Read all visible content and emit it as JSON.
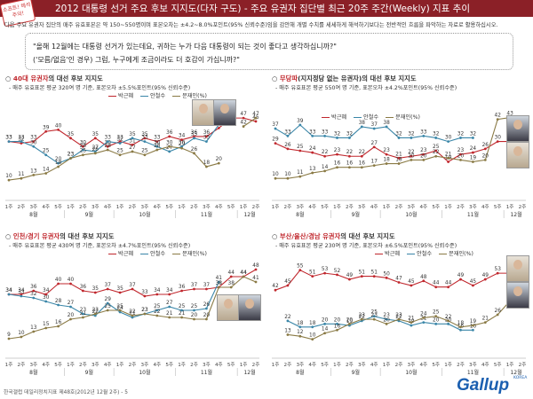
{
  "badge": {
    "text": "소프트! 해석주의!"
  },
  "header": {
    "title": "2012 대통령 선거 주요 후보 지지도(다자 구도) - 주요 유권자 집단별 최근 20주 주간(Weekly) 지표 추이"
  },
  "note": "다음 주요 유권자 집단의 매주 유효표본은 약 150~550명이며 표본오차는 ±4.2~8.0%포인트(95% 신뢰수준)임을 감안해 개별 수치를 세세하게 해석하기보다는 전반적인 흐름을 파악하는 자료로 활용하십시오.",
  "question": {
    "line1": "\"올해 12월에는 대통령 선거가 있는데요, 귀하는 누가 다음 대통령이 되는 것이 좋다고 생각하십니까?\"",
    "line2": "('모름/없음'인 경우) 그럼, 누구에게 조금이라도 더 호감이 가십니까?\""
  },
  "legend_labels": {
    "park": "박근혜",
    "ahn": "안철수",
    "moon": "문재인(%)"
  },
  "colors": {
    "park": "#c0272d",
    "ahn": "#3a86a8",
    "moon": "#8a7a45",
    "header": "#8b2027",
    "logo": "#1b5fb0"
  },
  "footer": "한국갤럽 데일리정치지표 제48호(2012년 12월 2주) - 5",
  "logo": {
    "name": "Gallup",
    "sub": "KOREA"
  },
  "chart_data": [
    {
      "type": "line",
      "title_red": "40대 유권자",
      "title_rest": "의 대선 후보 지지도",
      "subtitle": "- 매주 유효표본 평균 320여 명 기준, 표본오차 ±5.5%포인트(95% 신뢰수준)",
      "x": [
        "1주",
        "2주",
        "3주",
        "4주",
        "5주",
        "1주",
        "2주",
        "3주",
        "4주",
        "1주",
        "2주",
        "3주",
        "4주",
        "5주",
        "1주",
        "2주",
        "3주",
        "4주",
        "5주",
        "1주",
        "2주"
      ],
      "x_groups": [
        {
          "label": "8월",
          "from": 0
        },
        {
          "label": "9월",
          "from": 5
        },
        {
          "label": "10월",
          "from": 9
        },
        {
          "label": "11월",
          "from": 14
        },
        {
          "label": "12월",
          "from": 19
        }
      ],
      "ylim": [
        0,
        55
      ],
      "series": [
        {
          "name": "박근혜",
          "key": "park",
          "values": [
            33,
            32,
            33,
            39,
            40,
            35,
            30,
            35,
            30,
            33,
            31,
            35,
            33,
            36,
            34,
            36,
            36,
            41,
            47,
            47,
            45
          ]
        },
        {
          "name": "안철수",
          "key": "ahn",
          "values": [
            33,
            33,
            30,
            25,
            20,
            23,
            28,
            27,
            33,
            32,
            35,
            33,
            30,
            27,
            30,
            35,
            33,
            43,
            null,
            null,
            null
          ]
        },
        {
          "name": "문재인",
          "key": "moon",
          "values": [
            10,
            11,
            13,
            14,
            18,
            23,
            25,
            26,
            28,
            25,
            27,
            25,
            28,
            30,
            29,
            26,
            18,
            20,
            null,
            42,
            47
          ]
        }
      ]
    },
    {
      "type": "line",
      "title_red": "무당파",
      "title_rest": "(지지정당 없는 유권자)의 대선 후보 지지도",
      "subtitle": "- 매주 유효표본 평균 550여 명 기준, 표본오차 ±4.2%포인트(95% 신뢰수준)",
      "x": [
        "1주",
        "2주",
        "3주",
        "4주",
        "5주",
        "1주",
        "2주",
        "3주",
        "4주",
        "1주",
        "2주",
        "3주",
        "4주",
        "5주",
        "1주",
        "2주",
        "3주",
        "4주",
        "5주",
        "1주",
        "2주"
      ],
      "x_groups": [
        {
          "label": "8월",
          "from": 0
        },
        {
          "label": "9월",
          "from": 5
        },
        {
          "label": "10월",
          "from": 9
        },
        {
          "label": "11월",
          "from": 14
        },
        {
          "label": "12월",
          "from": 19
        }
      ],
      "ylim": [
        0,
        50
      ],
      "series": [
        {
          "name": "안철수",
          "key": "ahn",
          "values": [
            37,
            33,
            39,
            33,
            33,
            32,
            32,
            38,
            37,
            38,
            32,
            32,
            33,
            32,
            30,
            32,
            32,
            null,
            null,
            null,
            null
          ]
        },
        {
          "name": "박근혜",
          "key": "park",
          "values": [
            29,
            26,
            25,
            24,
            22,
            23,
            22,
            22,
            27,
            23,
            21,
            22,
            23,
            25,
            19,
            23,
            24,
            26,
            30,
            30,
            30
          ]
        },
        {
          "name": "문재인",
          "key": "moon",
          "values": [
            10,
            10,
            11,
            13,
            14,
            16,
            16,
            16,
            17,
            18,
            18,
            20,
            20,
            22,
            21,
            20,
            19,
            20,
            42,
            43,
            40
          ]
        }
      ]
    },
    {
      "type": "line",
      "title_red": "인천/경기 유권자",
      "title_rest": "의 대선 후보 지지도",
      "subtitle": "- 매주 유효표본 평균 430여 명 기준, 표본오차 ±4.7%포인트(95% 신뢰수준)",
      "x": [
        "1주",
        "2주",
        "3주",
        "4주",
        "5주",
        "1주",
        "2주",
        "3주",
        "4주",
        "1주",
        "2주",
        "3주",
        "4주",
        "5주",
        "1주",
        "2주",
        "3주",
        "4주",
        "5주",
        "1주",
        "2주"
      ],
      "x_groups": [
        {
          "label": "8월",
          "from": 0
        },
        {
          "label": "9월",
          "from": 5
        },
        {
          "label": "10월",
          "from": 9
        },
        {
          "label": "11월",
          "from": 14
        },
        {
          "label": "12월",
          "from": 19
        }
      ],
      "ylim": [
        0,
        52
      ],
      "series": [
        {
          "name": "박근혜",
          "key": "park",
          "values": [
            34,
            34,
            36,
            34,
            40,
            40,
            36,
            35,
            37,
            35,
            37,
            33,
            34,
            34,
            36,
            37,
            37,
            38,
            44,
            44,
            48
          ]
        },
        {
          "name": "안철수",
          "key": "ahn",
          "values": [
            34,
            33,
            32,
            30,
            28,
            27,
            23,
            22,
            29,
            24,
            21,
            23,
            25,
            27,
            25,
            25,
            26,
            41,
            null,
            null,
            null
          ]
        },
        {
          "name": "문재인",
          "key": "moon",
          "values": [
            9,
            10,
            13,
            15,
            16,
            20,
            21,
            23,
            25,
            25,
            22,
            23,
            22,
            21,
            21,
            20,
            20,
            38,
            38,
            44,
            41
          ]
        }
      ]
    },
    {
      "type": "line",
      "title_red": "부산/울산/경남 유권자",
      "title_rest": "의 대선 후보 지지도",
      "subtitle": "- 매주 유효표본 평균 230여 명 기준, 표본오차 ±6.5%포인트(95% 신뢰수준)",
      "x": [
        "1주",
        "2주",
        "3주",
        "4주",
        "5주",
        "1주",
        "2주",
        "3주",
        "4주",
        "1주",
        "2주",
        "3주",
        "4주",
        "5주",
        "1주",
        "2주",
        "3주",
        "4주",
        "5주",
        "1주",
        "2주"
      ],
      "x_groups": [
        {
          "label": "8월",
          "from": 0
        },
        {
          "label": "9월",
          "from": 5
        },
        {
          "label": "10월",
          "from": 9
        },
        {
          "label": "11월",
          "from": 14
        },
        {
          "label": "12월",
          "from": 19
        }
      ],
      "ylim": [
        0,
        60
      ],
      "series": [
        {
          "name": "박근혜",
          "key": "park",
          "values": [
            42,
            45,
            55,
            51,
            53,
            52,
            49,
            51,
            51,
            50,
            47,
            45,
            48,
            44,
            44,
            49,
            45,
            49,
            53,
            53,
            57
          ]
        },
        {
          "name": "안철수",
          "key": "ahn",
          "values": [
            null,
            22,
            18,
            18,
            20,
            20,
            19,
            22,
            25,
            23,
            22,
            19,
            21,
            20,
            20,
            16,
            16,
            null,
            null,
            null,
            null
          ]
        },
        {
          "name": "문재인",
          "key": "moon",
          "values": [
            null,
            13,
            12,
            10,
            14,
            16,
            20,
            23,
            23,
            20,
            23,
            21,
            24,
            25,
            22,
            18,
            19,
            21,
            26,
            35,
            33
          ]
        }
      ]
    }
  ]
}
